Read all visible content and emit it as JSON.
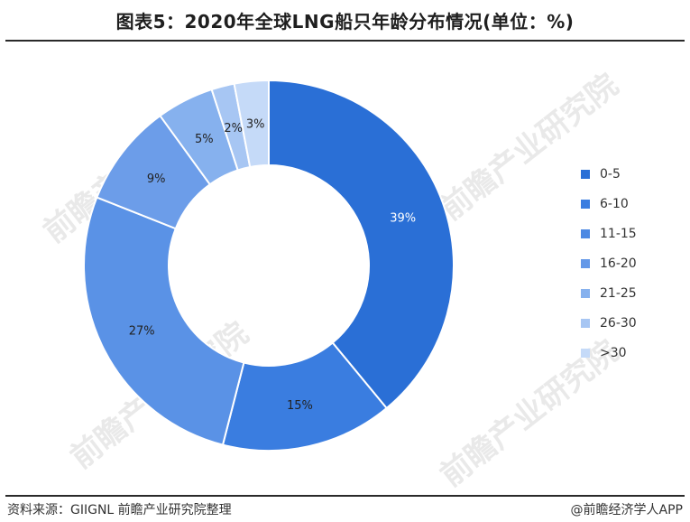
{
  "header": {
    "title": "图表5：2020年全球LNG船只年龄分布情况(单位：%)"
  },
  "chart_data": {
    "type": "pie",
    "donut": true,
    "categories": [
      "0-5",
      "6-10",
      "11-15",
      "16-20",
      "21-25",
      "26-30",
      ">30"
    ],
    "values": [
      39,
      15,
      27,
      9,
      5,
      2,
      3
    ],
    "labels": [
      "39%",
      "15%",
      "27%",
      "9%",
      "5%",
      "2%",
      "3%"
    ],
    "colors": [
      "#2a6fd6",
      "#3a7de0",
      "#5a92e6",
      "#6c9de9",
      "#86b1ee",
      "#a7c6f3",
      "#c5daf8"
    ],
    "legend_colors": [
      "#2a6fd6",
      "#3a7de0",
      "#4d89e3",
      "#6498e8",
      "#86b1ee",
      "#a7c6f3",
      "#c5daf8"
    ],
    "legend_position": "right"
  },
  "footer": {
    "source": "资料来源：GIIGNL 前瞻产业研究院整理",
    "credit": "@前瞻经济学人APP"
  },
  "watermark": {
    "text": "前瞻产业研究院"
  }
}
